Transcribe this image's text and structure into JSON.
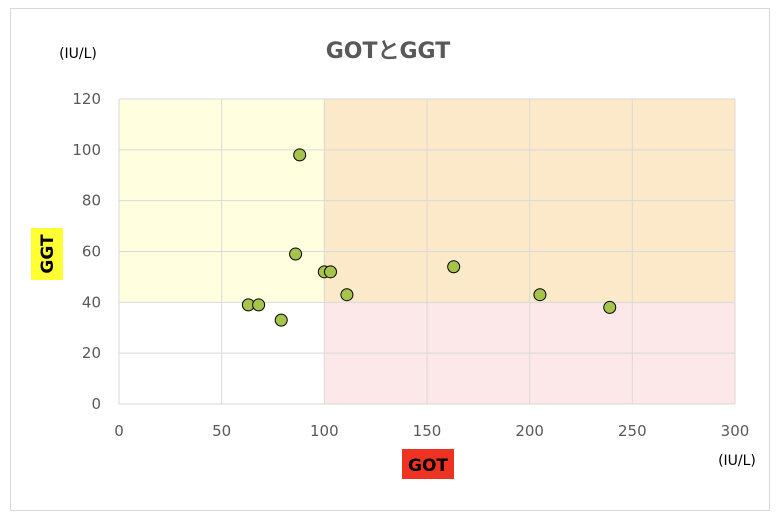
{
  "chart_data": {
    "type": "scatter",
    "title": "GOTとGGT",
    "xlabel": "GOT",
    "ylabel": "GGT",
    "x_unit": "(IU/L)",
    "y_unit": "(IU/L)",
    "xlim": [
      0,
      300
    ],
    "ylim": [
      0,
      120
    ],
    "x_ticks": [
      "0",
      "50",
      "100",
      "150",
      "200",
      "250",
      "300"
    ],
    "y_ticks": [
      "0",
      "20",
      "40",
      "60",
      "80",
      "100",
      "120"
    ],
    "grid": true,
    "regions": [
      {
        "x": [
          0,
          100
        ],
        "y": [
          40,
          120
        ],
        "color": "#ffffe0"
      },
      {
        "x": [
          100,
          300
        ],
        "y": [
          40,
          120
        ],
        "color": "#fbe9c9"
      },
      {
        "x": [
          100,
          300
        ],
        "y": [
          0,
          40
        ],
        "color": "#fce8e8"
      }
    ],
    "label_colors": {
      "xlabel_bg": "#ee3322",
      "ylabel_bg": "#ffff33"
    },
    "marker_color": "#a6c34c",
    "points": [
      {
        "x": 63,
        "y": 39
      },
      {
        "x": 68,
        "y": 39
      },
      {
        "x": 79,
        "y": 33
      },
      {
        "x": 86,
        "y": 59
      },
      {
        "x": 88,
        "y": 98
      },
      {
        "x": 100,
        "y": 52
      },
      {
        "x": 103,
        "y": 52
      },
      {
        "x": 111,
        "y": 43
      },
      {
        "x": 163,
        "y": 54
      },
      {
        "x": 205,
        "y": 43
      },
      {
        "x": 239,
        "y": 38
      }
    ]
  }
}
